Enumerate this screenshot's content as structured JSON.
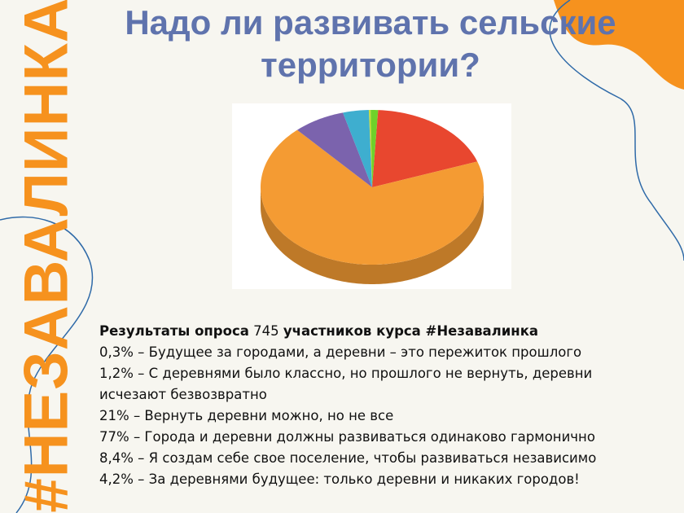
{
  "brand": "#НЕЗАВАЛИНКА",
  "chart_data": {
    "type": "pie",
    "title": "Надо ли развивать сельские территории?",
    "survey_prefix": "Результаты опроса",
    "participants": 745,
    "survey_suffix": "участников курса #Незавалинка",
    "categories": [
      "– Будущее за городами, а деревни – это пережиток прошлого",
      "– С деревнями было классно, но прошлого не вернуть, деревни исчезают безвозвратно",
      "– Вернуть деревни можно, но не все",
      "– Города и деревни должны развиваться одинаково гармонично",
      "– Я создам себе свое поселение, чтобы развиваться независимо",
      "– За деревнями будущее: только деревни и никаких городов!"
    ],
    "values": [
      0.3,
      1.2,
      21,
      77,
      8.4,
      4.2
    ],
    "value_labels": [
      "0,3%",
      "1,2%",
      "21%",
      "77%",
      "8,4%",
      "4,2%"
    ],
    "colors": [
      "#c9dc3a",
      "#6fd12a",
      "#e8472f",
      "#f49b33",
      "#7b63ad",
      "#3eaecf"
    ]
  }
}
